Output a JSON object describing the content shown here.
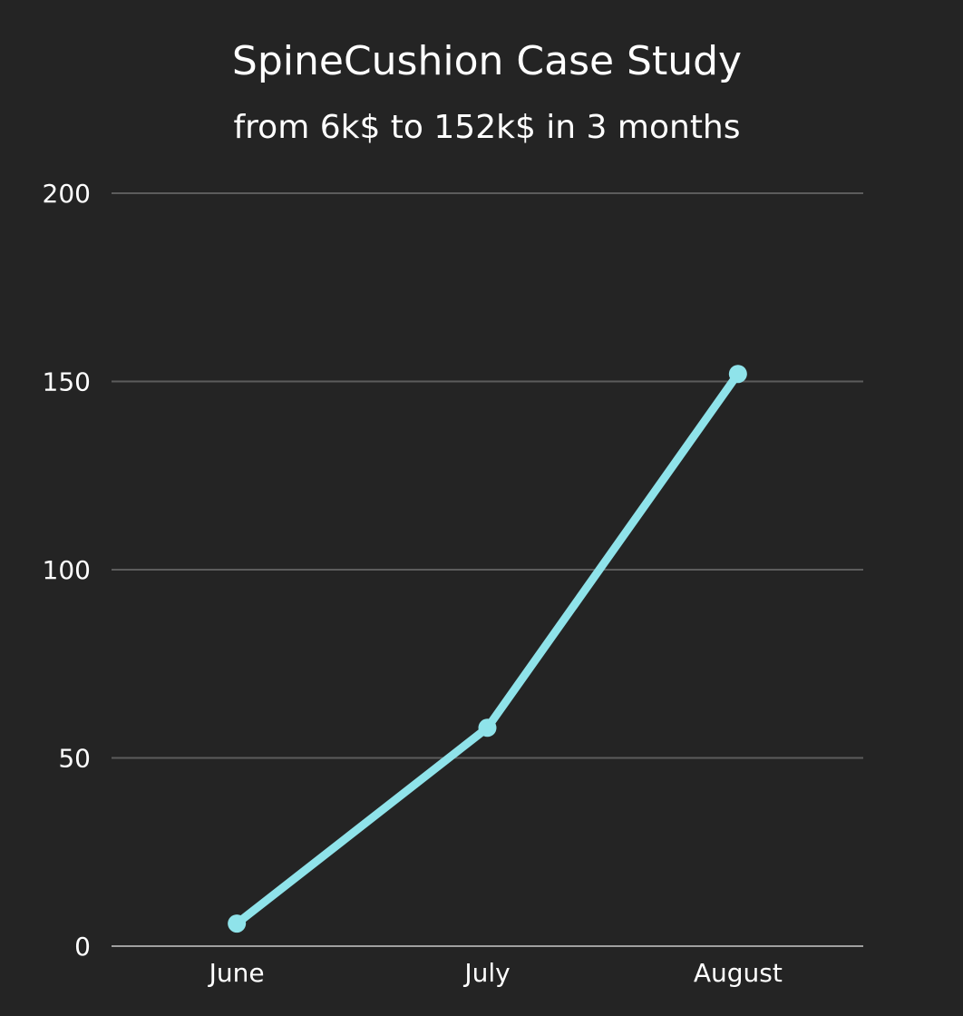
{
  "chart_data": {
    "type": "line",
    "title": "SpineCushion Case Study",
    "subtitle": "from 6k$ to 152k$ in 3 months",
    "xlabel": "",
    "ylabel": "",
    "categories": [
      "June",
      "July",
      "August"
    ],
    "series": [
      {
        "values": [
          6,
          58,
          152
        ]
      }
    ],
    "ylim": [
      0,
      200
    ],
    "yticks": [
      0,
      50,
      100,
      150,
      200
    ],
    "grid": true,
    "legend": "none",
    "colors": {
      "background": "#242424",
      "line": "#8fe3ea",
      "grid": "#5c5c5c",
      "text": "#ffffff"
    }
  }
}
